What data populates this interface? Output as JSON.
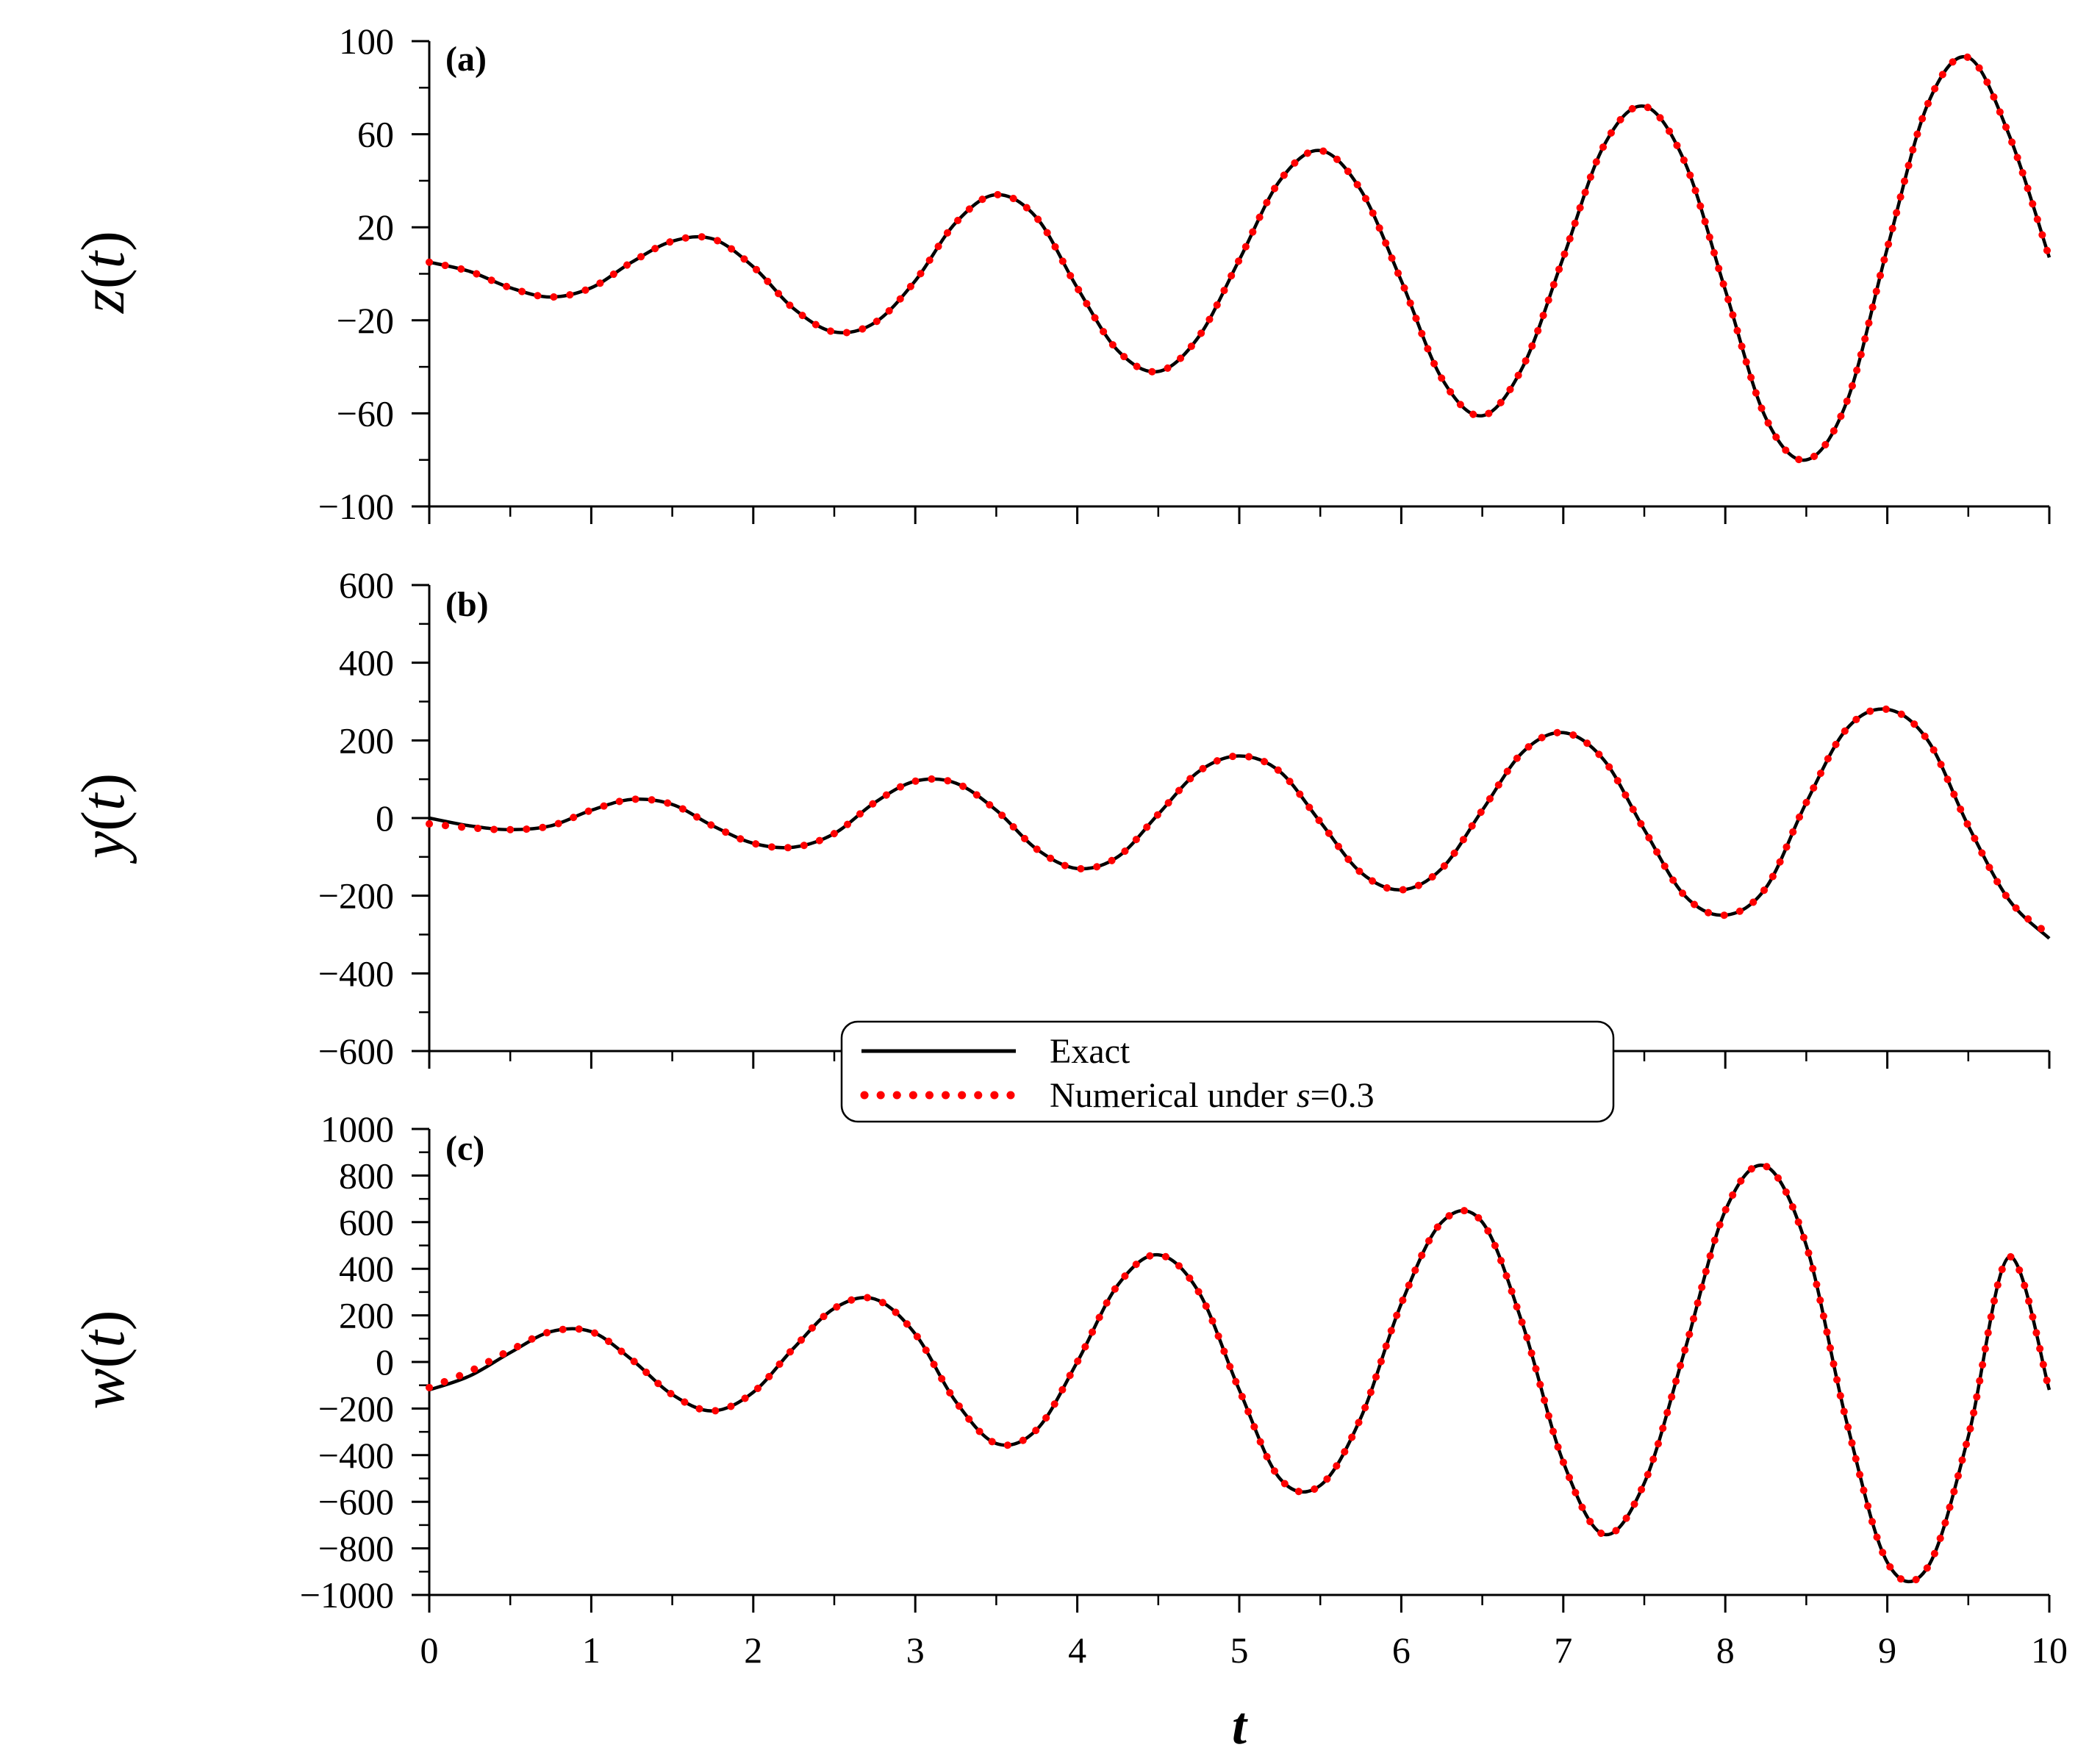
{
  "chart_data": [
    {
      "type": "line",
      "panel_label": "(a)",
      "ylabel": "z(t)",
      "ylabel_main": "z",
      "ylabel_arg": "t",
      "xlim": [
        0,
        10
      ],
      "ylim": [
        -100,
        100
      ],
      "yticks": [
        100,
        60,
        20,
        -20,
        -60,
        -100
      ],
      "ytick_labels": [
        "100",
        "60",
        "20",
        "−20",
        "−60",
        "−100"
      ],
      "series": [
        {
          "name": "Exact",
          "style": "solid",
          "color": "#000000",
          "x": [
            0,
            0.25,
            0.5,
            0.75,
            1.0,
            1.25,
            1.5,
            1.75,
            2.0,
            2.25,
            2.5,
            2.75,
            3.0,
            3.25,
            3.5,
            3.75,
            4.0,
            4.25,
            4.5,
            4.75,
            5.0,
            5.25,
            5.5,
            5.75,
            6.0,
            6.25,
            6.5,
            6.75,
            7.0,
            7.25,
            7.5,
            7.75,
            8.0,
            8.25,
            8.5,
            8.75,
            9.0,
            9.25,
            9.5,
            9.75,
            10.0
          ],
          "y": [
            5,
            1,
            -6,
            -10,
            -6,
            5,
            14,
            15,
            3,
            -15,
            -25,
            -21,
            -3,
            22,
            34,
            24,
            -6,
            -33,
            -42,
            -27,
            6,
            40,
            53,
            36,
            -3,
            -45,
            -61,
            -40,
            7,
            55,
            72,
            48,
            -7,
            -62,
            -80,
            -55,
            11,
            73,
            93,
            60,
            7
          ]
        },
        {
          "name": "Numerical under s=0.3",
          "style": "dotted",
          "color": "#ff0000",
          "x": [
            0,
            0.25,
            0.5,
            0.75,
            1.0,
            1.25,
            1.5,
            1.75,
            2.0,
            2.25,
            2.5,
            2.75,
            3.0,
            3.25,
            3.5,
            3.75,
            4.0,
            4.25,
            4.5,
            4.75,
            5.0,
            5.25,
            5.5,
            5.75,
            6.0,
            6.25,
            6.5,
            6.75,
            7.0,
            7.25,
            7.5,
            7.75,
            8.0,
            8.25,
            8.5,
            8.75,
            9.0,
            9.25,
            9.5,
            9.75,
            10.0
          ],
          "y": [
            5,
            1,
            -6,
            -10,
            -6,
            5,
            14,
            15,
            3,
            -15,
            -25,
            -21,
            -3,
            22,
            34,
            24,
            -6,
            -33,
            -42,
            -27,
            6,
            40,
            53,
            36,
            -3,
            -45,
            -61,
            -40,
            7,
            55,
            72,
            48,
            -7,
            -62,
            -80,
            -55,
            11,
            73,
            93,
            60,
            7
          ]
        }
      ]
    },
    {
      "type": "line",
      "panel_label": "(b)",
      "ylabel": "y(t)",
      "ylabel_main": "y",
      "ylabel_arg": "t",
      "xlim": [
        0,
        10
      ],
      "ylim": [
        -600,
        600
      ],
      "yticks": [
        600,
        400,
        200,
        0,
        -200,
        -400,
        -600
      ],
      "ytick_labels": [
        "600",
        "400",
        "200",
        "0",
        "−200",
        "−400",
        "−600"
      ],
      "series": [
        {
          "name": "Exact",
          "style": "solid",
          "color": "#000000",
          "x": [
            0,
            0.25,
            0.5,
            0.75,
            1.0,
            1.25,
            1.5,
            1.75,
            2.0,
            2.25,
            2.5,
            2.75,
            3.0,
            3.25,
            3.5,
            3.75,
            4.0,
            4.25,
            4.5,
            4.75,
            5.0,
            5.25,
            5.5,
            5.75,
            6.0,
            6.25,
            6.5,
            6.75,
            7.0,
            7.25,
            7.5,
            7.75,
            8.0,
            8.25,
            8.5,
            8.75,
            9.0,
            9.25,
            9.5,
            9.75,
            10.0
          ],
          "y": [
            0,
            -20,
            -30,
            -20,
            20,
            48,
            35,
            -20,
            -65,
            -75,
            -40,
            40,
            95,
            90,
            20,
            -80,
            -130,
            -100,
            10,
            120,
            160,
            120,
            -10,
            -140,
            -185,
            -130,
            20,
            170,
            220,
            150,
            -30,
            -200,
            -250,
            -180,
            40,
            230,
            280,
            200,
            -20,
            -210,
            -310
          ]
        },
        {
          "name": "Numerical under s=0.3",
          "style": "dotted",
          "color": "#ff0000",
          "x": [
            0,
            0.25,
            0.5,
            0.75,
            1.0,
            1.25,
            1.5,
            1.75,
            2.0,
            2.25,
            2.5,
            2.75,
            3.0,
            3.25,
            3.5,
            3.75,
            4.0,
            4.25,
            4.5,
            4.75,
            5.0,
            5.25,
            5.5,
            5.75,
            6.0,
            6.25,
            6.5,
            6.75,
            7.0,
            7.25,
            7.5,
            7.75,
            8.0,
            8.25,
            8.5,
            8.75,
            9.0,
            9.25,
            9.5,
            9.75,
            10.0
          ],
          "y": [
            -15,
            -25,
            -30,
            -20,
            20,
            48,
            35,
            -20,
            -65,
            -75,
            -40,
            40,
            95,
            90,
            20,
            -80,
            -130,
            -100,
            10,
            120,
            160,
            120,
            -10,
            -140,
            -185,
            -130,
            20,
            170,
            220,
            150,
            -30,
            -200,
            -250,
            -180,
            40,
            230,
            280,
            200,
            -20,
            -210,
            -300
          ]
        }
      ]
    },
    {
      "type": "line",
      "panel_label": "(c)",
      "ylabel": "w(t)",
      "ylabel_main": "w",
      "ylabel_arg": "t",
      "xlabel": "t",
      "xlim": [
        0,
        10
      ],
      "ylim": [
        -1000,
        1000
      ],
      "xticks": [
        0,
        1,
        2,
        3,
        4,
        5,
        6,
        7,
        8,
        9,
        10
      ],
      "xtick_labels": [
        "0",
        "1",
        "2",
        "3",
        "4",
        "5",
        "6",
        "7",
        "8",
        "9",
        "10"
      ],
      "yticks": [
        1000,
        800,
        600,
        400,
        200,
        0,
        -200,
        -400,
        -600,
        -800,
        -1000
      ],
      "ytick_labels": [
        "1000",
        "800",
        "600",
        "400",
        "200",
        "0",
        "−200",
        "−400",
        "−600",
        "−800",
        "−1000"
      ],
      "series": [
        {
          "name": "Exact",
          "style": "solid",
          "color": "#000000",
          "x": [
            0,
            0.25,
            0.5,
            0.75,
            1.0,
            1.25,
            1.5,
            1.75,
            2.0,
            2.25,
            2.5,
            2.75,
            3.0,
            3.25,
            3.5,
            3.75,
            4.0,
            4.25,
            4.5,
            4.75,
            5.0,
            5.25,
            5.5,
            5.75,
            6.0,
            6.25,
            6.5,
            6.75,
            7.0,
            7.25,
            7.5,
            7.75,
            8.0,
            8.25,
            8.5,
            8.75,
            9.0,
            9.25,
            9.5,
            9.75,
            10.0
          ],
          "y": [
            -120,
            -60,
            40,
            130,
            130,
            10,
            -140,
            -210,
            -130,
            60,
            230,
            270,
            120,
            -170,
            -350,
            -290,
            0,
            330,
            460,
            300,
            -120,
            -500,
            -530,
            -240,
            250,
            600,
            600,
            160,
            -430,
            -740,
            -520,
            50,
            650,
            840,
            500,
            -260,
            -860,
            -880,
            -320,
            450,
            -120
          ]
        },
        {
          "name": "Numerical under s=0.3",
          "style": "dotted",
          "color": "#ff0000",
          "x": [
            0,
            0.25,
            0.5,
            0.75,
            1.0,
            1.25,
            1.5,
            1.75,
            2.0,
            2.25,
            2.5,
            2.75,
            3.0,
            3.25,
            3.5,
            3.75,
            4.0,
            4.25,
            4.5,
            4.75,
            5.0,
            5.25,
            5.5,
            5.75,
            6.0,
            6.25,
            6.5,
            6.75,
            7.0,
            7.25,
            7.5,
            7.75,
            8.0,
            8.25,
            8.5,
            8.75,
            9.0,
            9.25,
            9.5,
            9.75,
            10.0
          ],
          "y": [
            -110,
            -40,
            50,
            130,
            130,
            10,
            -140,
            -210,
            -130,
            60,
            230,
            270,
            120,
            -170,
            -350,
            -290,
            0,
            330,
            460,
            300,
            -120,
            -500,
            -530,
            -240,
            250,
            600,
            600,
            160,
            -430,
            -740,
            -520,
            50,
            650,
            840,
            500,
            -260,
            -860,
            -880,
            -320,
            450,
            -120
          ]
        }
      ]
    }
  ],
  "legend": {
    "placement": "between panels (b) and (c), center-right",
    "entries": [
      {
        "label": "Exact",
        "style": "solid",
        "color": "#000000"
      },
      {
        "label_prefix": "Numerical under ",
        "label_var": "s",
        "label_suffix": "=0.3",
        "style": "dotted",
        "color": "#ff0000"
      }
    ]
  }
}
